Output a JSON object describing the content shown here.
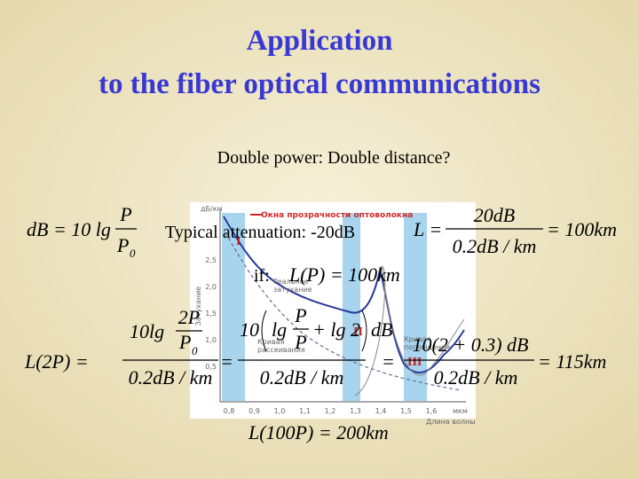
{
  "title": {
    "line1": "Application",
    "line2": "to the fiber optical communications"
  },
  "question": "Double power: Double distance?",
  "note": "Typical attenuation: -20dB",
  "condition": "if:",
  "formulas": {
    "db": {
      "lhs": "dB = 10 lg",
      "num": "P",
      "den": "P",
      "den_sub": "0"
    },
    "length": {
      "lhs": "L =",
      "num": "20dB",
      "den": "0.2dB / km",
      "rhs": "= 100km"
    },
    "given": "L(P) = 100km",
    "double": {
      "lhs": "L(2P) =",
      "f1": {
        "pre": "10lg",
        "num": "2P",
        "den": "P",
        "den_sub": "0",
        "den_main": "0.2dB / km"
      },
      "eq": "=",
      "f2": {
        "pre": "10",
        "lg": "lg",
        "num": "P",
        "den": "P",
        "plus": "+ lg 2",
        "unit": "dB",
        "den_main": "0.2dB / km"
      },
      "eq2": "=",
      "f3": {
        "num": "10(2 + 0.3) dB",
        "den_main": "0.2dB / km"
      },
      "rhs": "= 115km"
    },
    "hundred": "L(100P) = 200km"
  },
  "graph": {
    "unit": "дБ/км",
    "legend": "— Окна прозрачности оптоволокна",
    "axis_title": "Затухание",
    "windows": [
      "I",
      "II",
      "III"
    ],
    "real": [
      "Реальное",
      "затухание"
    ],
    "scatter": [
      "Кривая",
      "рассеивания"
    ],
    "absorption": [
      "Кривая",
      "поглощения"
    ],
    "yticks": [
      "2,5",
      "2,0",
      "1,5",
      "1,0",
      "0,5"
    ],
    "xticks": [
      "0,8",
      "0,9",
      "1,0",
      "1,1",
      "1,2",
      "1,3",
      "1,4",
      "1,5",
      "1,6"
    ],
    "xunit": "мкм",
    "xlabel": "Длина волны"
  }
}
